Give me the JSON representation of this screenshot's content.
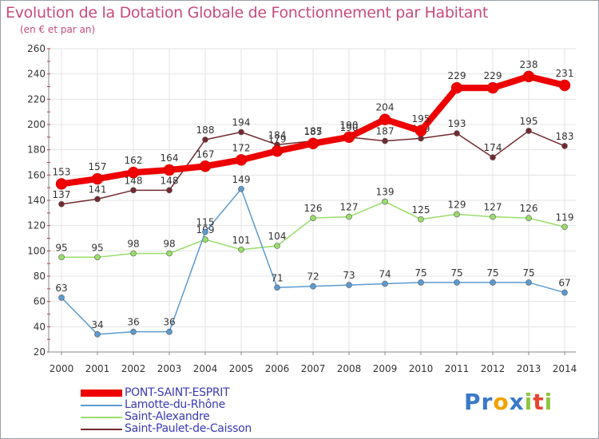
{
  "header": {
    "title": "Evolution de la Dotation Globale de Fonctionnement par Habitant",
    "subtitle": "(en € et par an)"
  },
  "brand": {
    "logo_letters": [
      {
        "ch": "P",
        "color": "#3a78c8"
      },
      {
        "ch": "r",
        "color": "#3a78c8"
      },
      {
        "ch": "o",
        "color": "#f2a200"
      },
      {
        "ch": "x",
        "color": "#3a78c8"
      },
      {
        "ch": "i",
        "color": "#8dc63f"
      },
      {
        "ch": "t",
        "color": "#e8442e"
      },
      {
        "ch": "i",
        "color": "#8dc63f"
      }
    ]
  },
  "chart_data": {
    "type": "line",
    "x": [
      "2000",
      "2001",
      "2002",
      "2003",
      "2004",
      "2005",
      "2006",
      "2007",
      "2008",
      "2009",
      "2010",
      "2011",
      "2012",
      "2013",
      "2014"
    ],
    "ylim": [
      20,
      260
    ],
    "yticks": [
      20,
      40,
      60,
      80,
      100,
      120,
      140,
      160,
      180,
      200,
      220,
      240,
      260
    ],
    "grid": true,
    "legend": "bottom-left",
    "series": [
      {
        "name": "Saint-Paulet-de-Caisson",
        "color": "#722a2f",
        "values": [
          137,
          141,
          148,
          148,
          188,
          194,
          184,
          187,
          190,
          187,
          189,
          193,
          174,
          195,
          183
        ]
      },
      {
        "name": "Saint-Alexandre",
        "color": "#99dd6a",
        "values": [
          95,
          95,
          98,
          98,
          109,
          101,
          104,
          126,
          127,
          139,
          125,
          129,
          127,
          126,
          119
        ]
      },
      {
        "name": "Lamotte-du-Rhône",
        "color": "#5b9bd0",
        "values": [
          63,
          34,
          36,
          36,
          115,
          149,
          71,
          72,
          73,
          74,
          75,
          75,
          75,
          75,
          67
        ]
      },
      {
        "name": "PONT-SAINT-ESPRIT",
        "color": "#ee0000",
        "values": [
          153,
          157,
          162,
          164,
          167,
          172,
          179,
          185,
          190,
          204,
          195,
          229,
          229,
          238,
          231
        ]
      }
    ],
    "legend_order": [
      "PONT-SAINT-ESPRIT",
      "Lamotte-du-Rhône",
      "Saint-Alexandre",
      "Saint-Paulet-de-Caisson"
    ]
  }
}
